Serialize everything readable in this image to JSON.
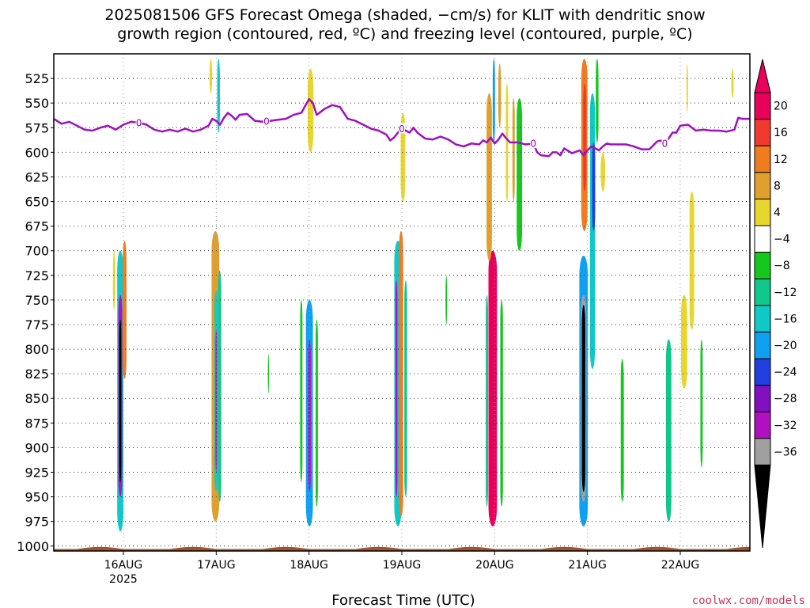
{
  "chart_data": {
    "type": "heatmap",
    "title_line1": "2025081506 GFS Forecast Omega (shaded, −cm/s) for KLIT with dendritic snow",
    "title_line2": "growth region (contoured, red, ºC) and freezing level (contoured, purple, ºC)",
    "xlabel": "Forecast Time (UTC)",
    "ylabel": "",
    "credit": "coolwx.com/models",
    "x_axis": {
      "ticks": [
        {
          "t": 18,
          "label": "16AUG",
          "sublabel": "2025"
        },
        {
          "t": 42,
          "label": "17AUG",
          "sublabel": ""
        },
        {
          "t": 66,
          "label": "18AUG",
          "sublabel": ""
        },
        {
          "t": 90,
          "label": "19AUG",
          "sublabel": ""
        },
        {
          "t": 114,
          "label": "20AUG",
          "sublabel": ""
        },
        {
          "t": 138,
          "label": "21AUG",
          "sublabel": ""
        },
        {
          "t": 162,
          "label": "22AUG",
          "sublabel": ""
        }
      ],
      "range_hours": [
        0,
        180
      ]
    },
    "y_axis": {
      "scale": "pressure_hPa",
      "ticks": [
        525,
        550,
        575,
        600,
        625,
        650,
        675,
        700,
        725,
        750,
        775,
        800,
        825,
        850,
        875,
        900,
        925,
        950,
        975,
        1000
      ],
      "range": [
        500,
        1005
      ]
    },
    "colorbar": {
      "labels": [
        "20",
        "16",
        "12",
        "8",
        "4",
        "−4",
        "−8",
        "−12",
        "−16",
        "−20",
        "−24",
        "−28",
        "−32",
        "−36"
      ],
      "colors": [
        "#e8005a",
        "#f03a30",
        "#f07c20",
        "#e0a030",
        "#e8d630",
        "#ffffff",
        "#14c81e",
        "#10c88c",
        "#10c8c8",
        "#10a0f0",
        "#2040e0",
        "#8010c0",
        "#b010c0",
        "#a0a0a0",
        "#000000"
      ]
    },
    "omega_cells": [
      {
        "t": 17.2,
        "p0": 700,
        "p1": 985,
        "w": 1.6,
        "v": -14
      },
      {
        "t": 17.2,
        "p0": 745,
        "p1": 950,
        "w": 1.0,
        "v": -30
      },
      {
        "t": 17.2,
        "p0": 770,
        "p1": 935,
        "w": 0.5,
        "v": -40
      },
      {
        "t": 18.3,
        "p0": 690,
        "p1": 830,
        "w": 1.0,
        "v": 14
      },
      {
        "t": 15.6,
        "p0": 700,
        "p1": 760,
        "w": 0.6,
        "v": 6
      },
      {
        "t": 41.8,
        "p0": 680,
        "p1": 975,
        "w": 2.0,
        "v": 10
      },
      {
        "t": 42.0,
        "p0": 740,
        "p1": 945,
        "w": 0.9,
        "v": -14
      },
      {
        "t": 42.0,
        "p0": 780,
        "p1": 925,
        "w": 0.4,
        "v": -30
      },
      {
        "t": 42.9,
        "p0": 720,
        "p1": 955,
        "w": 0.8,
        "v": -8
      },
      {
        "t": 42.6,
        "p0": 505,
        "p1": 580,
        "w": 0.7,
        "v": -12
      },
      {
        "t": 40.6,
        "p0": 505,
        "p1": 540,
        "w": 0.7,
        "v": 6
      },
      {
        "t": 66.1,
        "p0": 750,
        "p1": 980,
        "w": 1.8,
        "v": -16
      },
      {
        "t": 66.1,
        "p0": 790,
        "p1": 945,
        "w": 0.7,
        "v": -30
      },
      {
        "t": 64.0,
        "p0": 750,
        "p1": 935,
        "w": 0.6,
        "v": -6
      },
      {
        "t": 68.0,
        "p0": 770,
        "p1": 960,
        "w": 0.6,
        "v": -6
      },
      {
        "t": 66.4,
        "p0": 515,
        "p1": 600,
        "w": 1.5,
        "v": 5
      },
      {
        "t": 89.0,
        "p0": 690,
        "p1": 980,
        "w": 1.9,
        "v": -12
      },
      {
        "t": 89.8,
        "p0": 680,
        "p1": 970,
        "w": 1.1,
        "v": 12
      },
      {
        "t": 88.6,
        "p0": 730,
        "p1": 950,
        "w": 0.5,
        "v": -28
      },
      {
        "t": 91.0,
        "p0": 730,
        "p1": 950,
        "w": 0.7,
        "v": -8
      },
      {
        "t": 90.3,
        "p0": 560,
        "p1": 650,
        "w": 1.2,
        "v": 5
      },
      {
        "t": 113.5,
        "p0": 700,
        "p1": 980,
        "w": 2.2,
        "v": 20
      },
      {
        "t": 112.0,
        "p0": 745,
        "p1": 960,
        "w": 0.6,
        "v": -10
      },
      {
        "t": 115.8,
        "p0": 750,
        "p1": 960,
        "w": 0.7,
        "v": -6
      },
      {
        "t": 112.6,
        "p0": 540,
        "p1": 710,
        "w": 1.4,
        "v": 10
      },
      {
        "t": 113.8,
        "p0": 505,
        "p1": 590,
        "w": 0.6,
        "v": -18
      },
      {
        "t": 115.3,
        "p0": 510,
        "p1": 575,
        "w": 0.7,
        "v": 8
      },
      {
        "t": 117.2,
        "p0": 530,
        "p1": 650,
        "w": 0.6,
        "v": 6
      },
      {
        "t": 120.4,
        "p0": 545,
        "p1": 700,
        "w": 1.4,
        "v": -6
      },
      {
        "t": 118.9,
        "p0": 545,
        "p1": 650,
        "w": 0.6,
        "v": 10
      },
      {
        "t": 137.0,
        "p0": 705,
        "p1": 980,
        "w": 2.2,
        "v": -18
      },
      {
        "t": 137.0,
        "p0": 745,
        "p1": 955,
        "w": 1.4,
        "v": -34
      },
      {
        "t": 137.0,
        "p0": 755,
        "p1": 945,
        "w": 0.9,
        "v": -40
      },
      {
        "t": 137.2,
        "p0": 505,
        "p1": 680,
        "w": 1.6,
        "v": 14
      },
      {
        "t": 137.3,
        "p0": 530,
        "p1": 640,
        "w": 0.8,
        "v": 18
      },
      {
        "t": 139.3,
        "p0": 540,
        "p1": 820,
        "w": 1.3,
        "v": -14
      },
      {
        "t": 139.6,
        "p0": 590,
        "p1": 680,
        "w": 0.8,
        "v": -20
      },
      {
        "t": 140.5,
        "p0": 505,
        "p1": 590,
        "w": 0.7,
        "v": -6
      },
      {
        "t": 142.0,
        "p0": 600,
        "p1": 640,
        "w": 1.2,
        "v": 6
      },
      {
        "t": 147.0,
        "p0": 810,
        "p1": 955,
        "w": 0.8,
        "v": -6
      },
      {
        "t": 159.0,
        "p0": 790,
        "p1": 975,
        "w": 1.4,
        "v": -10
      },
      {
        "t": 163.0,
        "p0": 745,
        "p1": 840,
        "w": 1.6,
        "v": 5
      },
      {
        "t": 165.0,
        "p0": 640,
        "p1": 780,
        "w": 1.2,
        "v": 5
      },
      {
        "t": 167.5,
        "p0": 790,
        "p1": 920,
        "w": 0.6,
        "v": -6
      },
      {
        "t": 175.5,
        "p0": 515,
        "p1": 545,
        "w": 0.6,
        "v": 6
      },
      {
        "t": 163.8,
        "p0": 510,
        "p1": 560,
        "w": 0.4,
        "v": 6
      },
      {
        "t": 55.5,
        "p0": 805,
        "p1": 845,
        "w": 0.3,
        "v": -6
      },
      {
        "t": 101.5,
        "p0": 725,
        "p1": 775,
        "w": 0.4,
        "v": -6
      }
    ],
    "freezing_level": {
      "label": "0",
      "label_hours": [
        22,
        55,
        90,
        124,
        158
      ],
      "points": [
        [
          0,
          566
        ],
        [
          2,
          571
        ],
        [
          4,
          569
        ],
        [
          6,
          573
        ],
        [
          8,
          577
        ],
        [
          10,
          578
        ],
        [
          12,
          575
        ],
        [
          14,
          573
        ],
        [
          16,
          577
        ],
        [
          18,
          572
        ],
        [
          20,
          569
        ],
        [
          22,
          570
        ],
        [
          24,
          572
        ],
        [
          26,
          577
        ],
        [
          28,
          579
        ],
        [
          30,
          577
        ],
        [
          32,
          579
        ],
        [
          34,
          576
        ],
        [
          36,
          579
        ],
        [
          38,
          577
        ],
        [
          40,
          573
        ],
        [
          41,
          566
        ],
        [
          42,
          568
        ],
        [
          43,
          572
        ],
        [
          44,
          565
        ],
        [
          45,
          560
        ],
        [
          46,
          563
        ],
        [
          47,
          567
        ],
        [
          48,
          562
        ],
        [
          50,
          561
        ],
        [
          52,
          568
        ],
        [
          54,
          569
        ],
        [
          56,
          568
        ],
        [
          58,
          567
        ],
        [
          60,
          566
        ],
        [
          62,
          562
        ],
        [
          64,
          560
        ],
        [
          65,
          553
        ],
        [
          66,
          546
        ],
        [
          67,
          550
        ],
        [
          68,
          562
        ],
        [
          70,
          556
        ],
        [
          72,
          552
        ],
        [
          74,
          554
        ],
        [
          76,
          566
        ],
        [
          78,
          568
        ],
        [
          80,
          572
        ],
        [
          82,
          576
        ],
        [
          84,
          578
        ],
        [
          86,
          582
        ],
        [
          87,
          588
        ],
        [
          88,
          585
        ],
        [
          89,
          580
        ],
        [
          90,
          576
        ],
        [
          92,
          580
        ],
        [
          93,
          575
        ],
        [
          94,
          580
        ],
        [
          96,
          586
        ],
        [
          98,
          587
        ],
        [
          100,
          584
        ],
        [
          102,
          587
        ],
        [
          104,
          592
        ],
        [
          106,
          594
        ],
        [
          108,
          591
        ],
        [
          110,
          592
        ],
        [
          111,
          588
        ],
        [
          112,
          590
        ],
        [
          113,
          585
        ],
        [
          114,
          591
        ],
        [
          115,
          587
        ],
        [
          116,
          581
        ],
        [
          117,
          586
        ],
        [
          118,
          590
        ],
        [
          120,
          590
        ],
        [
          122,
          592
        ],
        [
          124,
          591
        ],
        [
          125,
          600
        ],
        [
          126,
          603
        ],
        [
          128,
          604
        ],
        [
          129,
          600
        ],
        [
          130,
          600
        ],
        [
          131,
          603
        ],
        [
          132,
          596
        ],
        [
          134,
          601
        ],
        [
          136,
          598
        ],
        [
          137,
          603
        ],
        [
          138,
          598
        ],
        [
          139,
          594
        ],
        [
          140,
          596
        ],
        [
          141,
          598
        ],
        [
          142,
          594
        ],
        [
          143,
          591
        ],
        [
          144,
          592
        ],
        [
          146,
          592
        ],
        [
          148,
          592
        ],
        [
          150,
          594
        ],
        [
          152,
          597
        ],
        [
          154,
          597
        ],
        [
          156,
          589
        ],
        [
          157,
          588
        ],
        [
          158,
          591
        ],
        [
          159,
          586
        ],
        [
          160,
          580
        ],
        [
          161,
          580
        ],
        [
          162,
          573
        ],
        [
          164,
          572
        ],
        [
          166,
          578
        ],
        [
          168,
          577
        ],
        [
          170,
          578
        ],
        [
          172,
          578
        ],
        [
          174,
          579
        ],
        [
          176,
          577
        ],
        [
          177,
          565
        ],
        [
          178,
          566
        ],
        [
          180,
          566
        ]
      ]
    },
    "terrain_color": "#a0522d",
    "freezing_color": "#a010c0"
  }
}
